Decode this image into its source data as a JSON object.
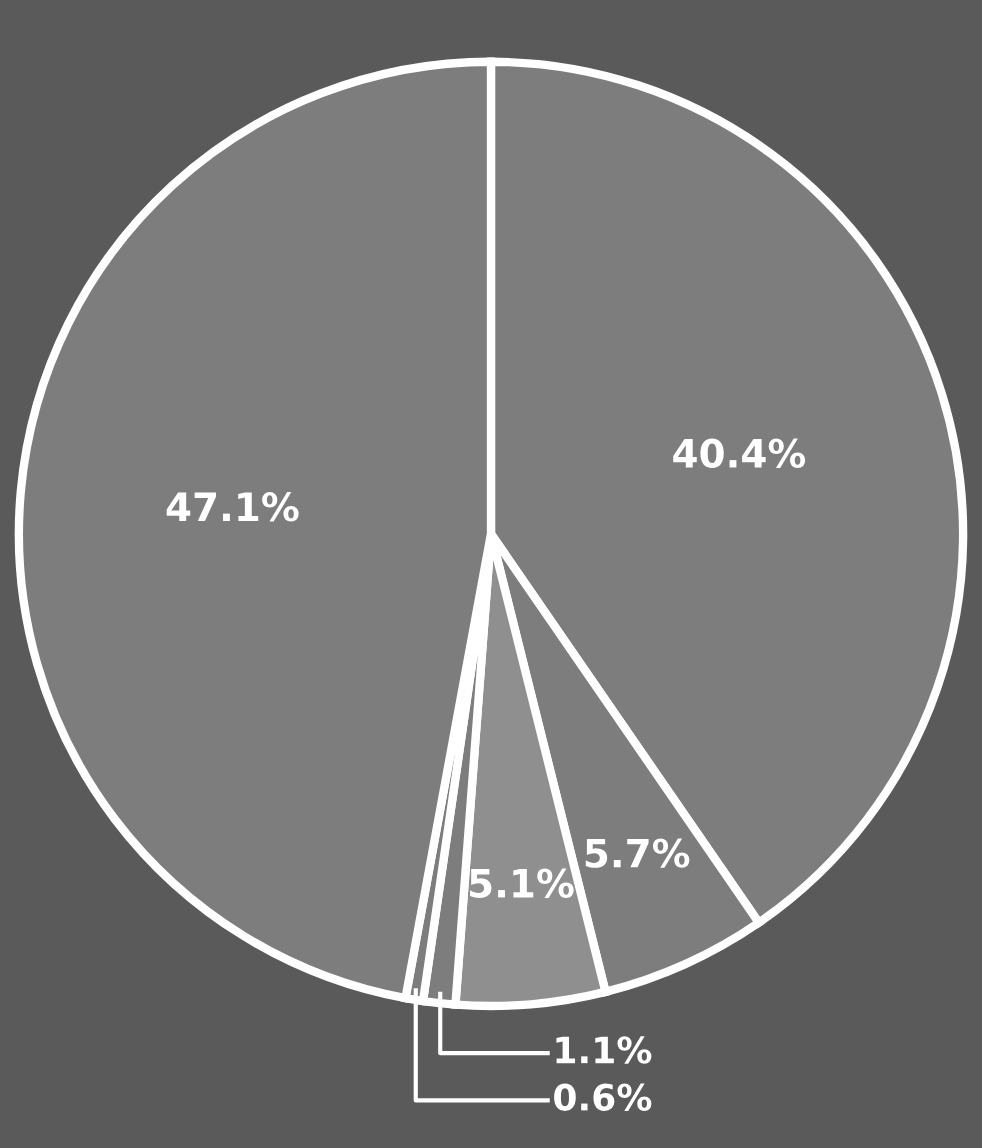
{
  "chart_data": {
    "type": "pie",
    "categories": [
      null,
      null,
      null,
      null,
      null,
      null
    ],
    "values": [
      40.4,
      5.7,
      5.1,
      1.1,
      0.6,
      47.1
    ],
    "colors": [
      "#7d7d7d",
      "#7d7d7d",
      "#8f8f8f",
      "#7d7d7d",
      "#7d7d7d",
      "#7d7d7d"
    ],
    "value_labels": [
      "40.4%",
      "5.7%",
      "5.1%",
      "1.1%",
      "0.6%",
      "47.1%"
    ]
  }
}
